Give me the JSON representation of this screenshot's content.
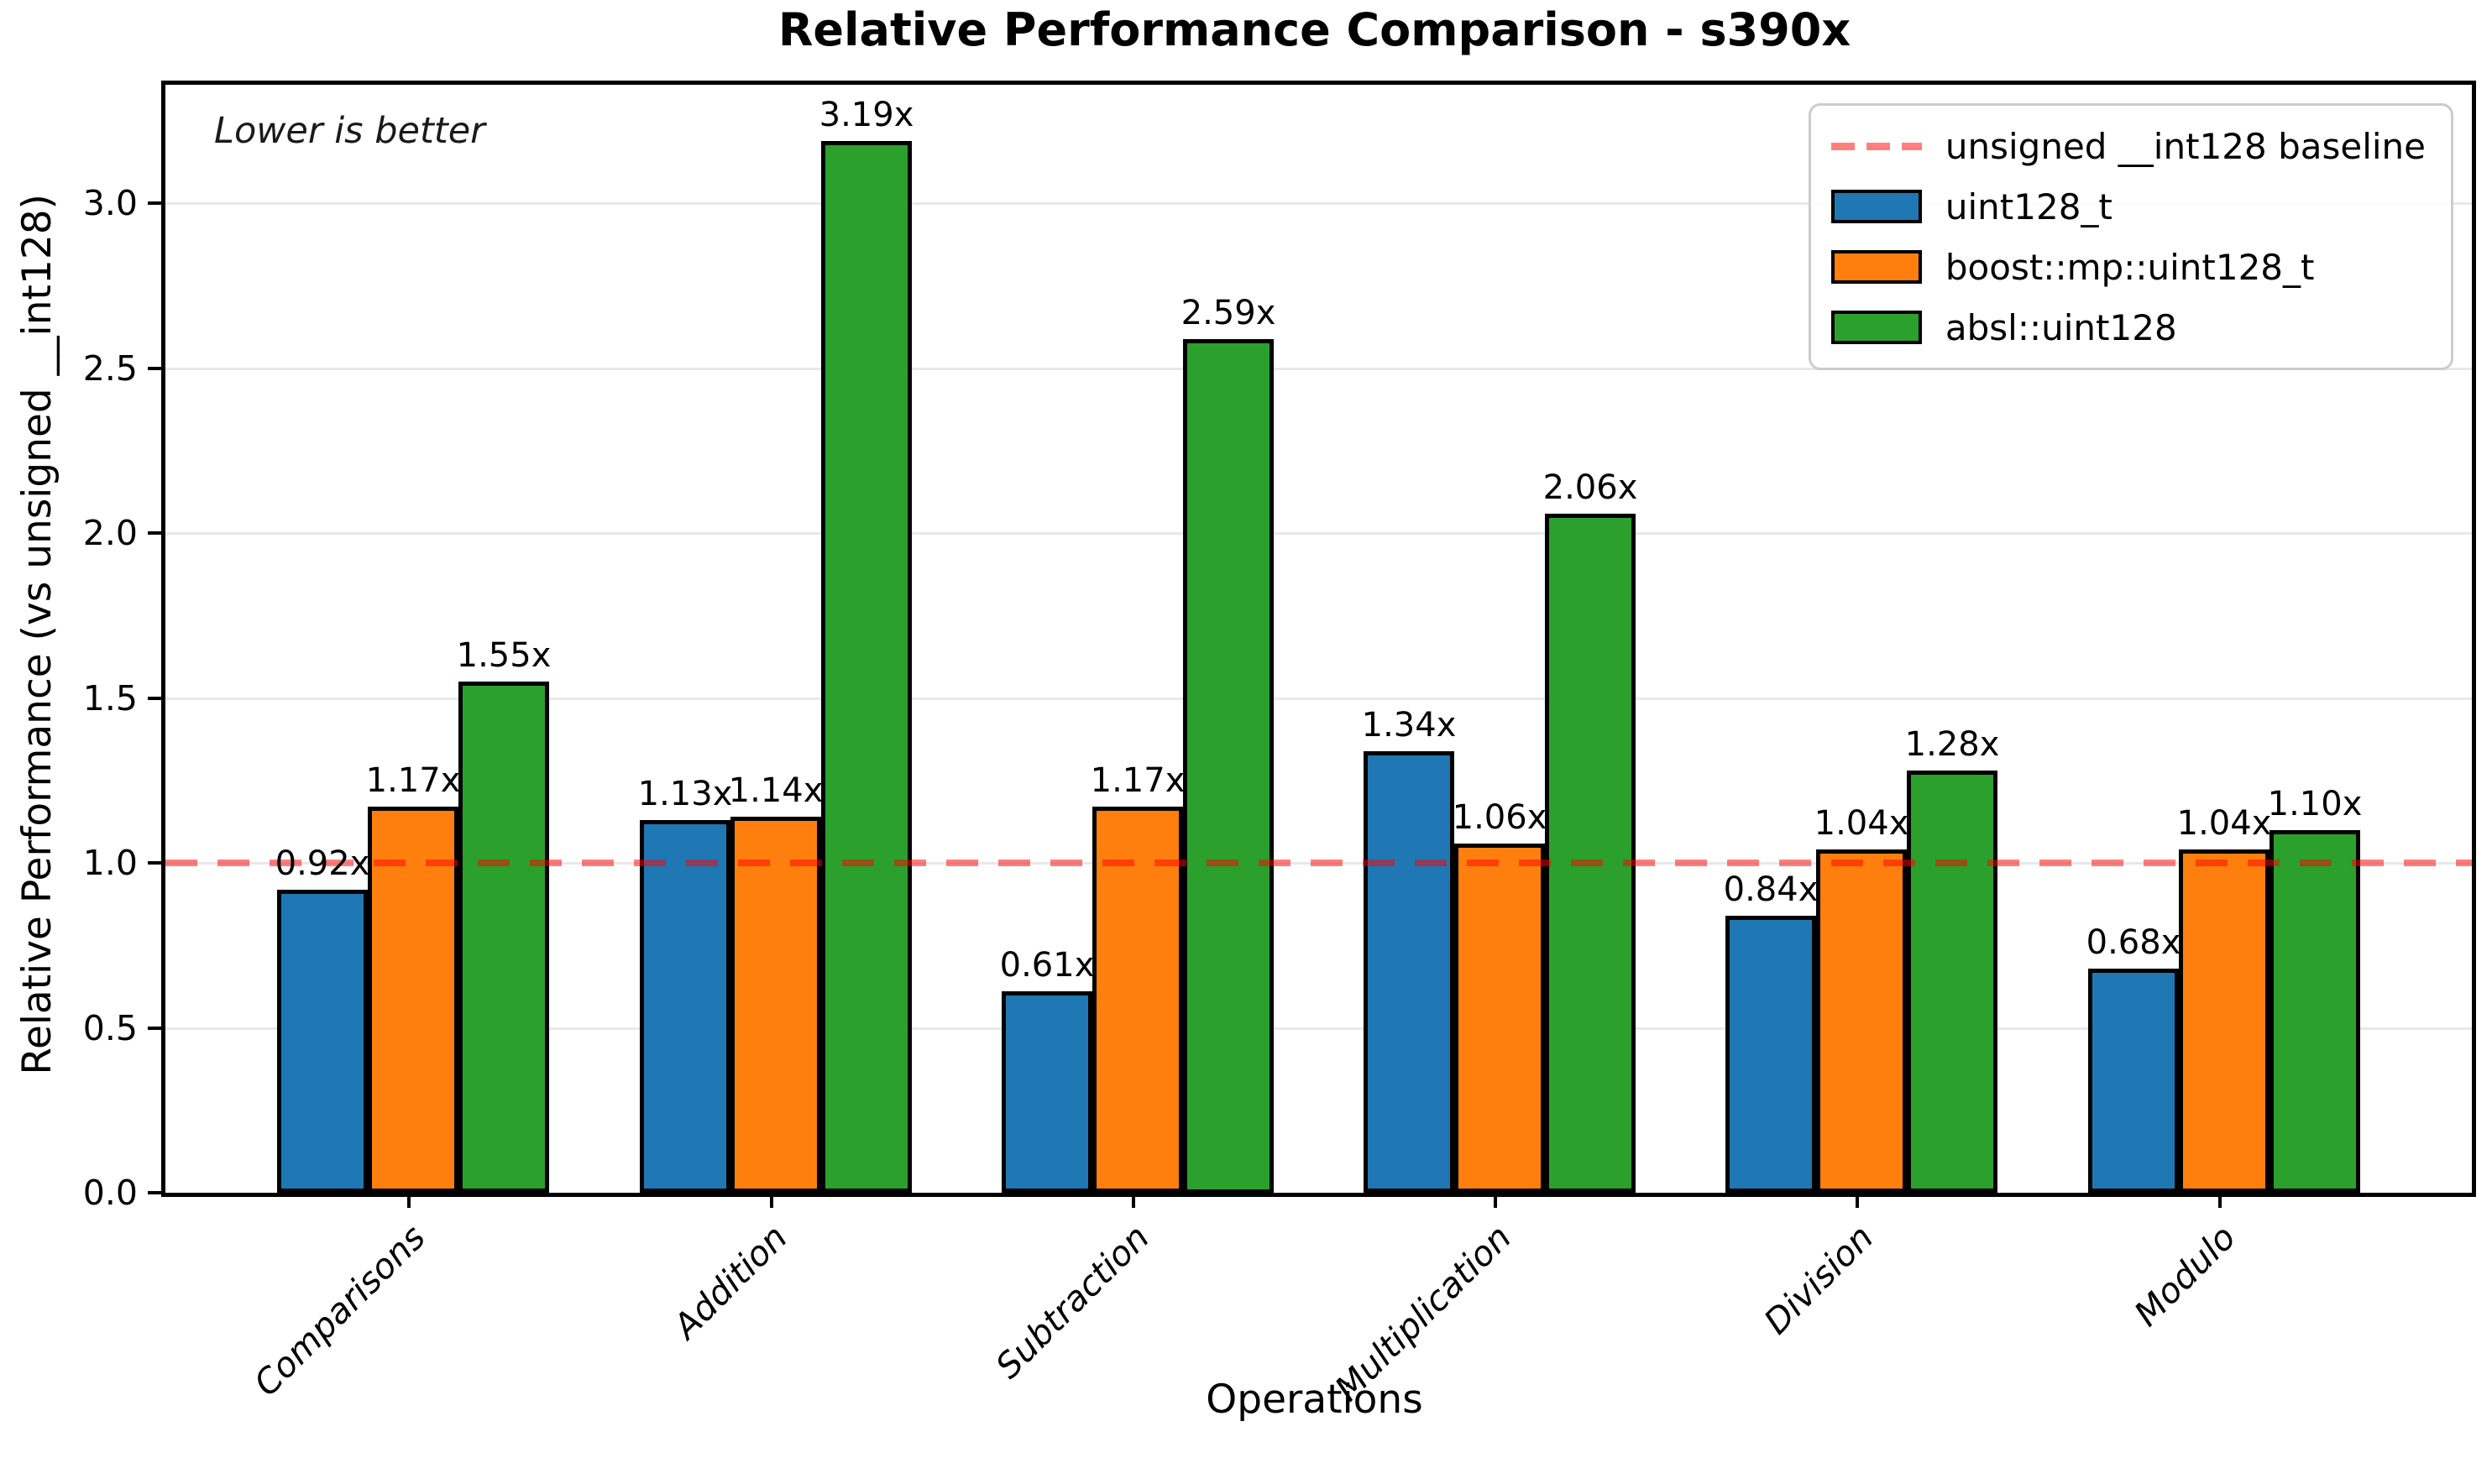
{
  "chart_data": {
    "type": "bar",
    "title": "Relative Performance Comparison - s390x",
    "xlabel": "Operations",
    "ylabel": "Relative Performance (vs unsigned __int128)",
    "annotation": "Lower is better",
    "categories": [
      "Comparisons",
      "Addition",
      "Subtraction",
      "Multiplication",
      "Division",
      "Modulo"
    ],
    "series": [
      {
        "name": "uint128_t",
        "color": "#1f77b4",
        "values": [
          0.92,
          1.13,
          0.61,
          1.34,
          0.84,
          0.68
        ]
      },
      {
        "name": "boost::mp::uint128_t",
        "color": "#ff7f0e",
        "values": [
          1.17,
          1.14,
          1.17,
          1.06,
          1.04,
          1.04
        ]
      },
      {
        "name": "absl::uint128",
        "color": "#2ca02c",
        "values": [
          1.55,
          3.19,
          2.59,
          2.06,
          1.28,
          1.1
        ]
      }
    ],
    "value_label_suffix": "x",
    "baseline": {
      "value": 1.0,
      "label": "unsigned __int128 baseline",
      "color": "rgba(255,0,0,0.5)"
    },
    "y_ticks": [
      0.0,
      0.5,
      1.0,
      1.5,
      2.0,
      2.5,
      3.0
    ],
    "ylim": [
      0,
      3.36
    ],
    "grid": true,
    "legend_position": "upper right",
    "bar_edge_color": "#000000",
    "x_tick_label_rotation_deg": 45
  }
}
